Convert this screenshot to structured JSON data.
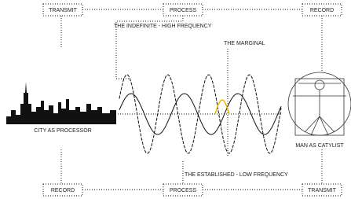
{
  "top": {
    "left": "TRANSMIT",
    "middle": "PROCESS",
    "right": "RECORD"
  },
  "bottom": {
    "left": "RECORD",
    "middle": "PROCESS",
    "right": "TRANSMIT"
  },
  "labels": {
    "high": "THE INDEFINITE - HIGH FREQUENCY",
    "marginal": "THE MARGINAL",
    "low": "THE ESTABLISHED - LOW FREQUENCY"
  },
  "city": "CITY AS PROCESSOR",
  "man": "MAN AS CATYLIST"
}
